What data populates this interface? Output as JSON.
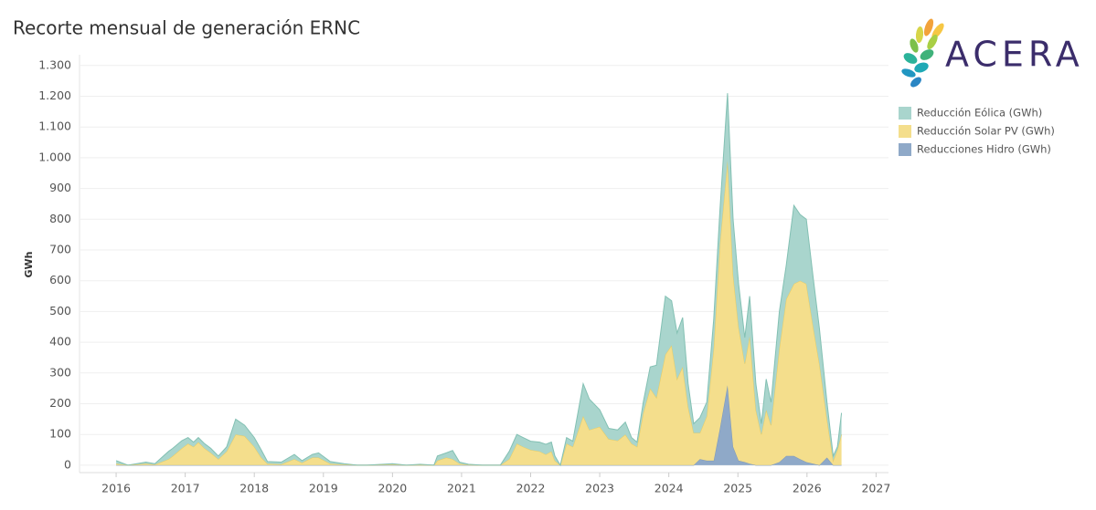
{
  "chart_data": {
    "type": "stacked_area",
    "title": "Recorte mensual de generación ERNC",
    "logo_text": "ACERA",
    "ylabel": "GWh",
    "x": [
      2016.0,
      2016.17,
      2016.43,
      2016.56,
      2016.76,
      2016.82,
      2016.95,
      2017.04,
      2017.12,
      2017.19,
      2017.28,
      2017.37,
      2017.48,
      2017.6,
      2017.73,
      2017.86,
      2018.0,
      2018.1,
      2018.19,
      2018.39,
      2018.58,
      2018.69,
      2018.84,
      2018.93,
      2019.1,
      2019.3,
      2019.49,
      2019.63,
      2020.0,
      2020.2,
      2020.4,
      2020.6,
      2020.65,
      2020.78,
      2020.87,
      2020.97,
      2021.1,
      2021.3,
      2021.56,
      2021.69,
      2021.8,
      2021.89,
      2022.0,
      2022.13,
      2022.22,
      2022.3,
      2022.35,
      2022.43,
      2022.52,
      2022.61,
      2022.76,
      2022.85,
      2023.0,
      2023.13,
      2023.26,
      2023.37,
      2023.46,
      2023.54,
      2023.63,
      2023.73,
      2023.82,
      2023.95,
      2024.04,
      2024.12,
      2024.2,
      2024.28,
      2024.36,
      2024.45,
      2024.55,
      2024.65,
      2024.74,
      2024.85,
      2024.93,
      2025.01,
      2025.1,
      2025.17,
      2025.26,
      2025.34,
      2025.41,
      2025.48,
      2025.6,
      2025.7,
      2025.81,
      2025.9,
      2025.99,
      2026.09,
      2026.18,
      2026.29,
      2026.38,
      2026.44,
      2026.5
    ],
    "series": [
      {
        "name": "Reducciones Hidro (GWh)",
        "color": "#8fa9c8",
        "stroke": "#7d98b9",
        "values": [
          0,
          0,
          0,
          0,
          0,
          0,
          0,
          0,
          0,
          0,
          0,
          0,
          0,
          0,
          0,
          0,
          0,
          0,
          0,
          0,
          0,
          0,
          0,
          0,
          0,
          0,
          0,
          0,
          0,
          0,
          0,
          0,
          0,
          0,
          0,
          0,
          0,
          0,
          0,
          0,
          0,
          0,
          0,
          0,
          0,
          0,
          0,
          0,
          0,
          0,
          0,
          0,
          0,
          0,
          0,
          0,
          0,
          0,
          0,
          0,
          0,
          0,
          0,
          0,
          0,
          0,
          0,
          20,
          15,
          15,
          120,
          260,
          60,
          15,
          10,
          5,
          0,
          0,
          0,
          0,
          10,
          30,
          30,
          20,
          10,
          5,
          0,
          25,
          0,
          0,
          0
        ]
      },
      {
        "name": "Reducción Solar PV (GWh)",
        "color": "#f4de8c",
        "stroke": "#e9cc62",
        "values": [
          5,
          0,
          5,
          2,
          20,
          30,
          55,
          70,
          60,
          75,
          55,
          40,
          20,
          45,
          100,
          95,
          60,
          25,
          5,
          3,
          20,
          8,
          25,
          25,
          5,
          2,
          0,
          0,
          2,
          0,
          1,
          0,
          15,
          25,
          20,
          5,
          1,
          0,
          0,
          20,
          70,
          60,
          50,
          45,
          35,
          45,
          15,
          0,
          70,
          60,
          160,
          115,
          125,
          85,
          80,
          100,
          70,
          60,
          170,
          250,
          220,
          360,
          390,
          280,
          320,
          190,
          105,
          85,
          145,
          365,
          600,
          730,
          560,
          435,
          320,
          415,
          180,
          100,
          180,
          130,
          370,
          510,
          560,
          580,
          580,
          445,
          330,
          125,
          15,
          50,
          100
        ]
      },
      {
        "name": "Reducción Eólica (GWh)",
        "color": "#a9d5cd",
        "stroke": "#83c0b3",
        "values": [
          10,
          0,
          5,
          3,
          25,
          25,
          25,
          20,
          15,
          15,
          15,
          15,
          10,
          15,
          50,
          35,
          30,
          25,
          7,
          7,
          15,
          7,
          10,
          15,
          7,
          3,
          0,
          0,
          3,
          0,
          2,
          0,
          15,
          15,
          28,
          5,
          2,
          0,
          0,
          25,
          30,
          30,
          28,
          30,
          33,
          30,
          15,
          0,
          20,
          18,
          105,
          100,
          55,
          35,
          35,
          40,
          20,
          15,
          35,
          70,
          105,
          190,
          145,
          150,
          160,
          75,
          30,
          50,
          45,
          95,
          110,
          220,
          180,
          140,
          85,
          130,
          85,
          35,
          100,
          75,
          120,
          110,
          255,
          215,
          210,
          160,
          115,
          55,
          15,
          10,
          70
        ]
      }
    ],
    "legend_order": [
      2,
      1,
      0
    ],
    "xlim": [
      2015.47,
      2027.18
    ],
    "xticks": [
      2016,
      2017,
      2018,
      2019,
      2020,
      2021,
      2022,
      2023,
      2024,
      2025,
      2026,
      2027
    ],
    "ylim": [
      -24,
      1335
    ],
    "yticks": [
      0,
      100,
      200,
      300,
      400,
      500,
      600,
      700,
      800,
      900,
      {
        "value": 1000,
        "label": "1.000"
      },
      {
        "value": 1100,
        "label": "1.100"
      },
      {
        "value": 1200,
        "label": "1.200"
      },
      {
        "value": 1300,
        "label": "1.300"
      }
    ],
    "grid": true
  }
}
